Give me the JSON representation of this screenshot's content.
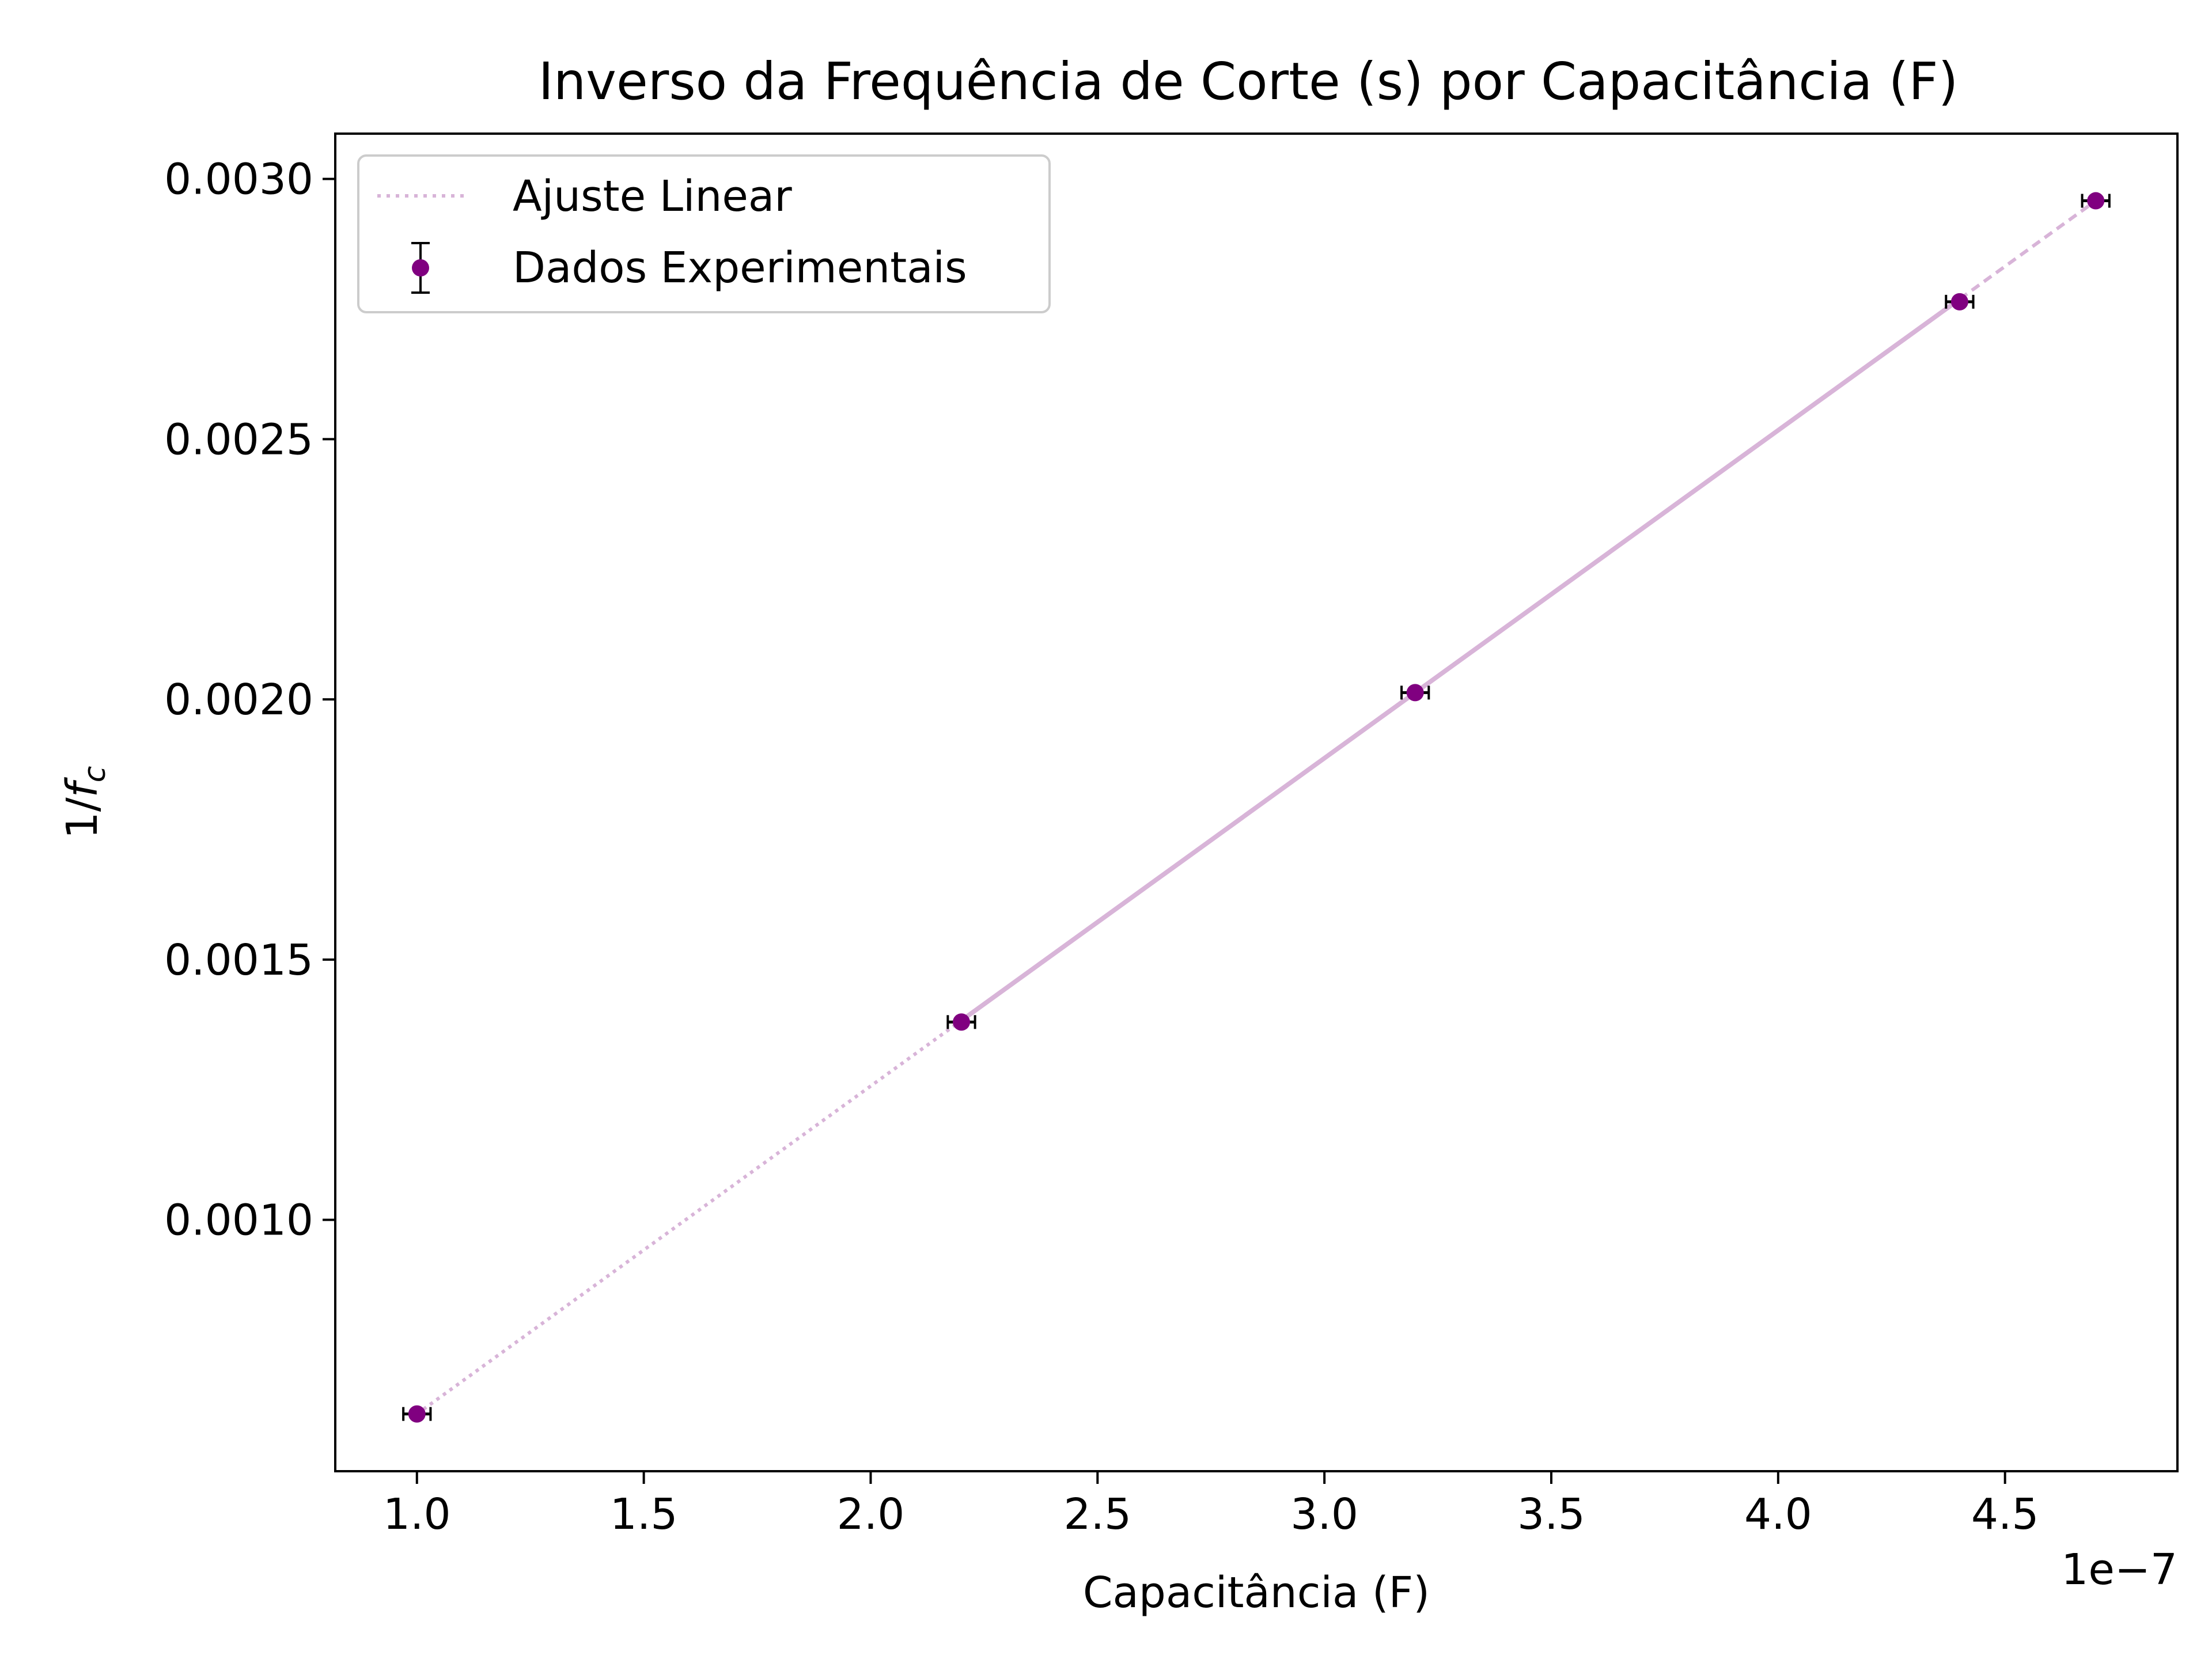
{
  "chart_data": {
    "type": "scatter",
    "title": "Inverso da Frequência de Corte (s) por Capacitância (F)",
    "xlabel": "Capacitância (F)",
    "ylabel_main": "1/",
    "ylabel_italic": "f",
    "ylabel_sub": "c",
    "x_offset_label": "1e−7",
    "x_scale": 1e-07,
    "xlim": [
      0.82,
      4.88
    ],
    "ylim": [
      0.000517,
      0.003087
    ],
    "xticks": [
      1.0,
      1.5,
      2.0,
      2.5,
      3.0,
      3.5,
      4.0,
      4.5
    ],
    "xtick_labels": [
      "1.0",
      "1.5",
      "2.0",
      "2.5",
      "3.0",
      "3.5",
      "4.0",
      "4.5"
    ],
    "yticks": [
      0.001,
      0.0015,
      0.002,
      0.0025,
      0.003
    ],
    "ytick_labels": [
      "0.0010",
      "0.0015",
      "0.0020",
      "0.0025",
      "0.0030"
    ],
    "grid": false,
    "legend": {
      "placement": "upper-left",
      "entries": [
        "Ajuste Linear",
        "Dados Experimentais"
      ]
    },
    "series": [
      {
        "name": "Dados Experimentais",
        "kind": "errorbar",
        "color": "#800080",
        "errorbar_color": "#000000",
        "x": [
          1.0,
          2.2,
          3.2,
          4.4,
          4.7
        ],
        "y": [
          0.000627,
          0.00138,
          0.002013,
          0.002764,
          0.002958
        ],
        "xerr": [
          0.03,
          0.03,
          0.03,
          0.03,
          0.03
        ]
      },
      {
        "name": "Ajuste Linear",
        "kind": "line",
        "color": "#d8b4d8",
        "x": [
          1.0,
          4.7
        ],
        "y": [
          0.000627,
          0.002958
        ]
      }
    ]
  }
}
